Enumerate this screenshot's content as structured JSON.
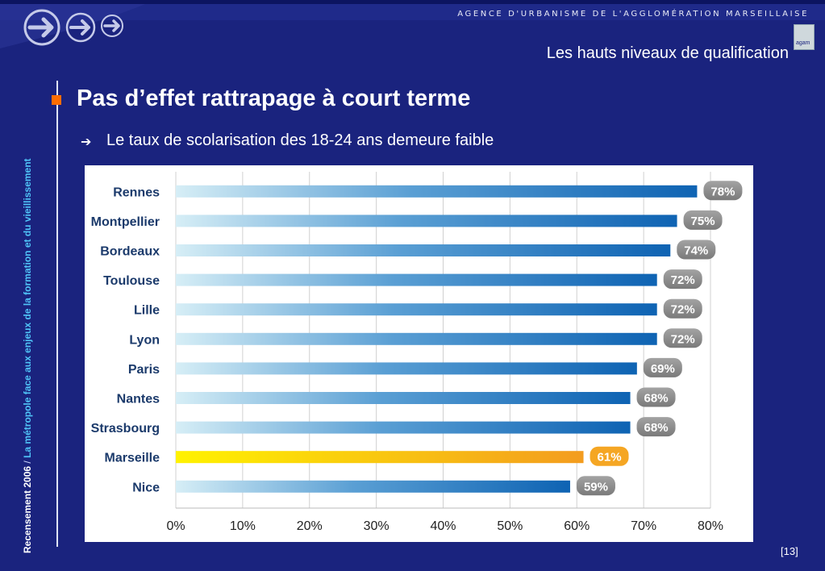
{
  "header": {
    "agency": "AGENCE D'URBANISME DE L'AGGLOMÉRATION MARSEILLAISE",
    "section_title": "Les hauts niveaux de qualification",
    "logo_text": "agam"
  },
  "slide": {
    "title": "Pas d’effet rattrapage à court terme",
    "bullet": "Le taux de scolarisation des 18-24 ans demeure faible",
    "side_main": "Recensement 2006",
    "side_separator": " / ",
    "side_sub": "La métropole face aux enjeux de la formation et du vieillissement",
    "page_number": "[13]"
  },
  "colors": {
    "background": "#1a237e",
    "bar_blue": "#1f6fb8",
    "bar_highlight": "#f5a623",
    "label_pill": "#8c8c8c",
    "accent_square": "#ff6d00"
  },
  "chart_data": {
    "type": "bar",
    "orientation": "horizontal",
    "categories": [
      "Rennes",
      "Montpellier",
      "Bordeaux",
      "Toulouse",
      "Lille",
      "Lyon",
      "Paris",
      "Nantes",
      "Strasbourg",
      "Marseille",
      "Nice"
    ],
    "values": [
      78,
      75,
      74,
      72,
      72,
      72,
      69,
      68,
      68,
      61,
      59
    ],
    "value_labels": [
      "78%",
      "75%",
      "74%",
      "72%",
      "72%",
      "72%",
      "69%",
      "68%",
      "68%",
      "61%",
      "59%"
    ],
    "highlight": "Marseille",
    "xlim": [
      0,
      80
    ],
    "xticks": [
      "0%",
      "10%",
      "20%",
      "30%",
      "40%",
      "50%",
      "60%",
      "70%",
      "80%"
    ],
    "grid": "vertical",
    "title": "",
    "xlabel": "",
    "ylabel": ""
  }
}
